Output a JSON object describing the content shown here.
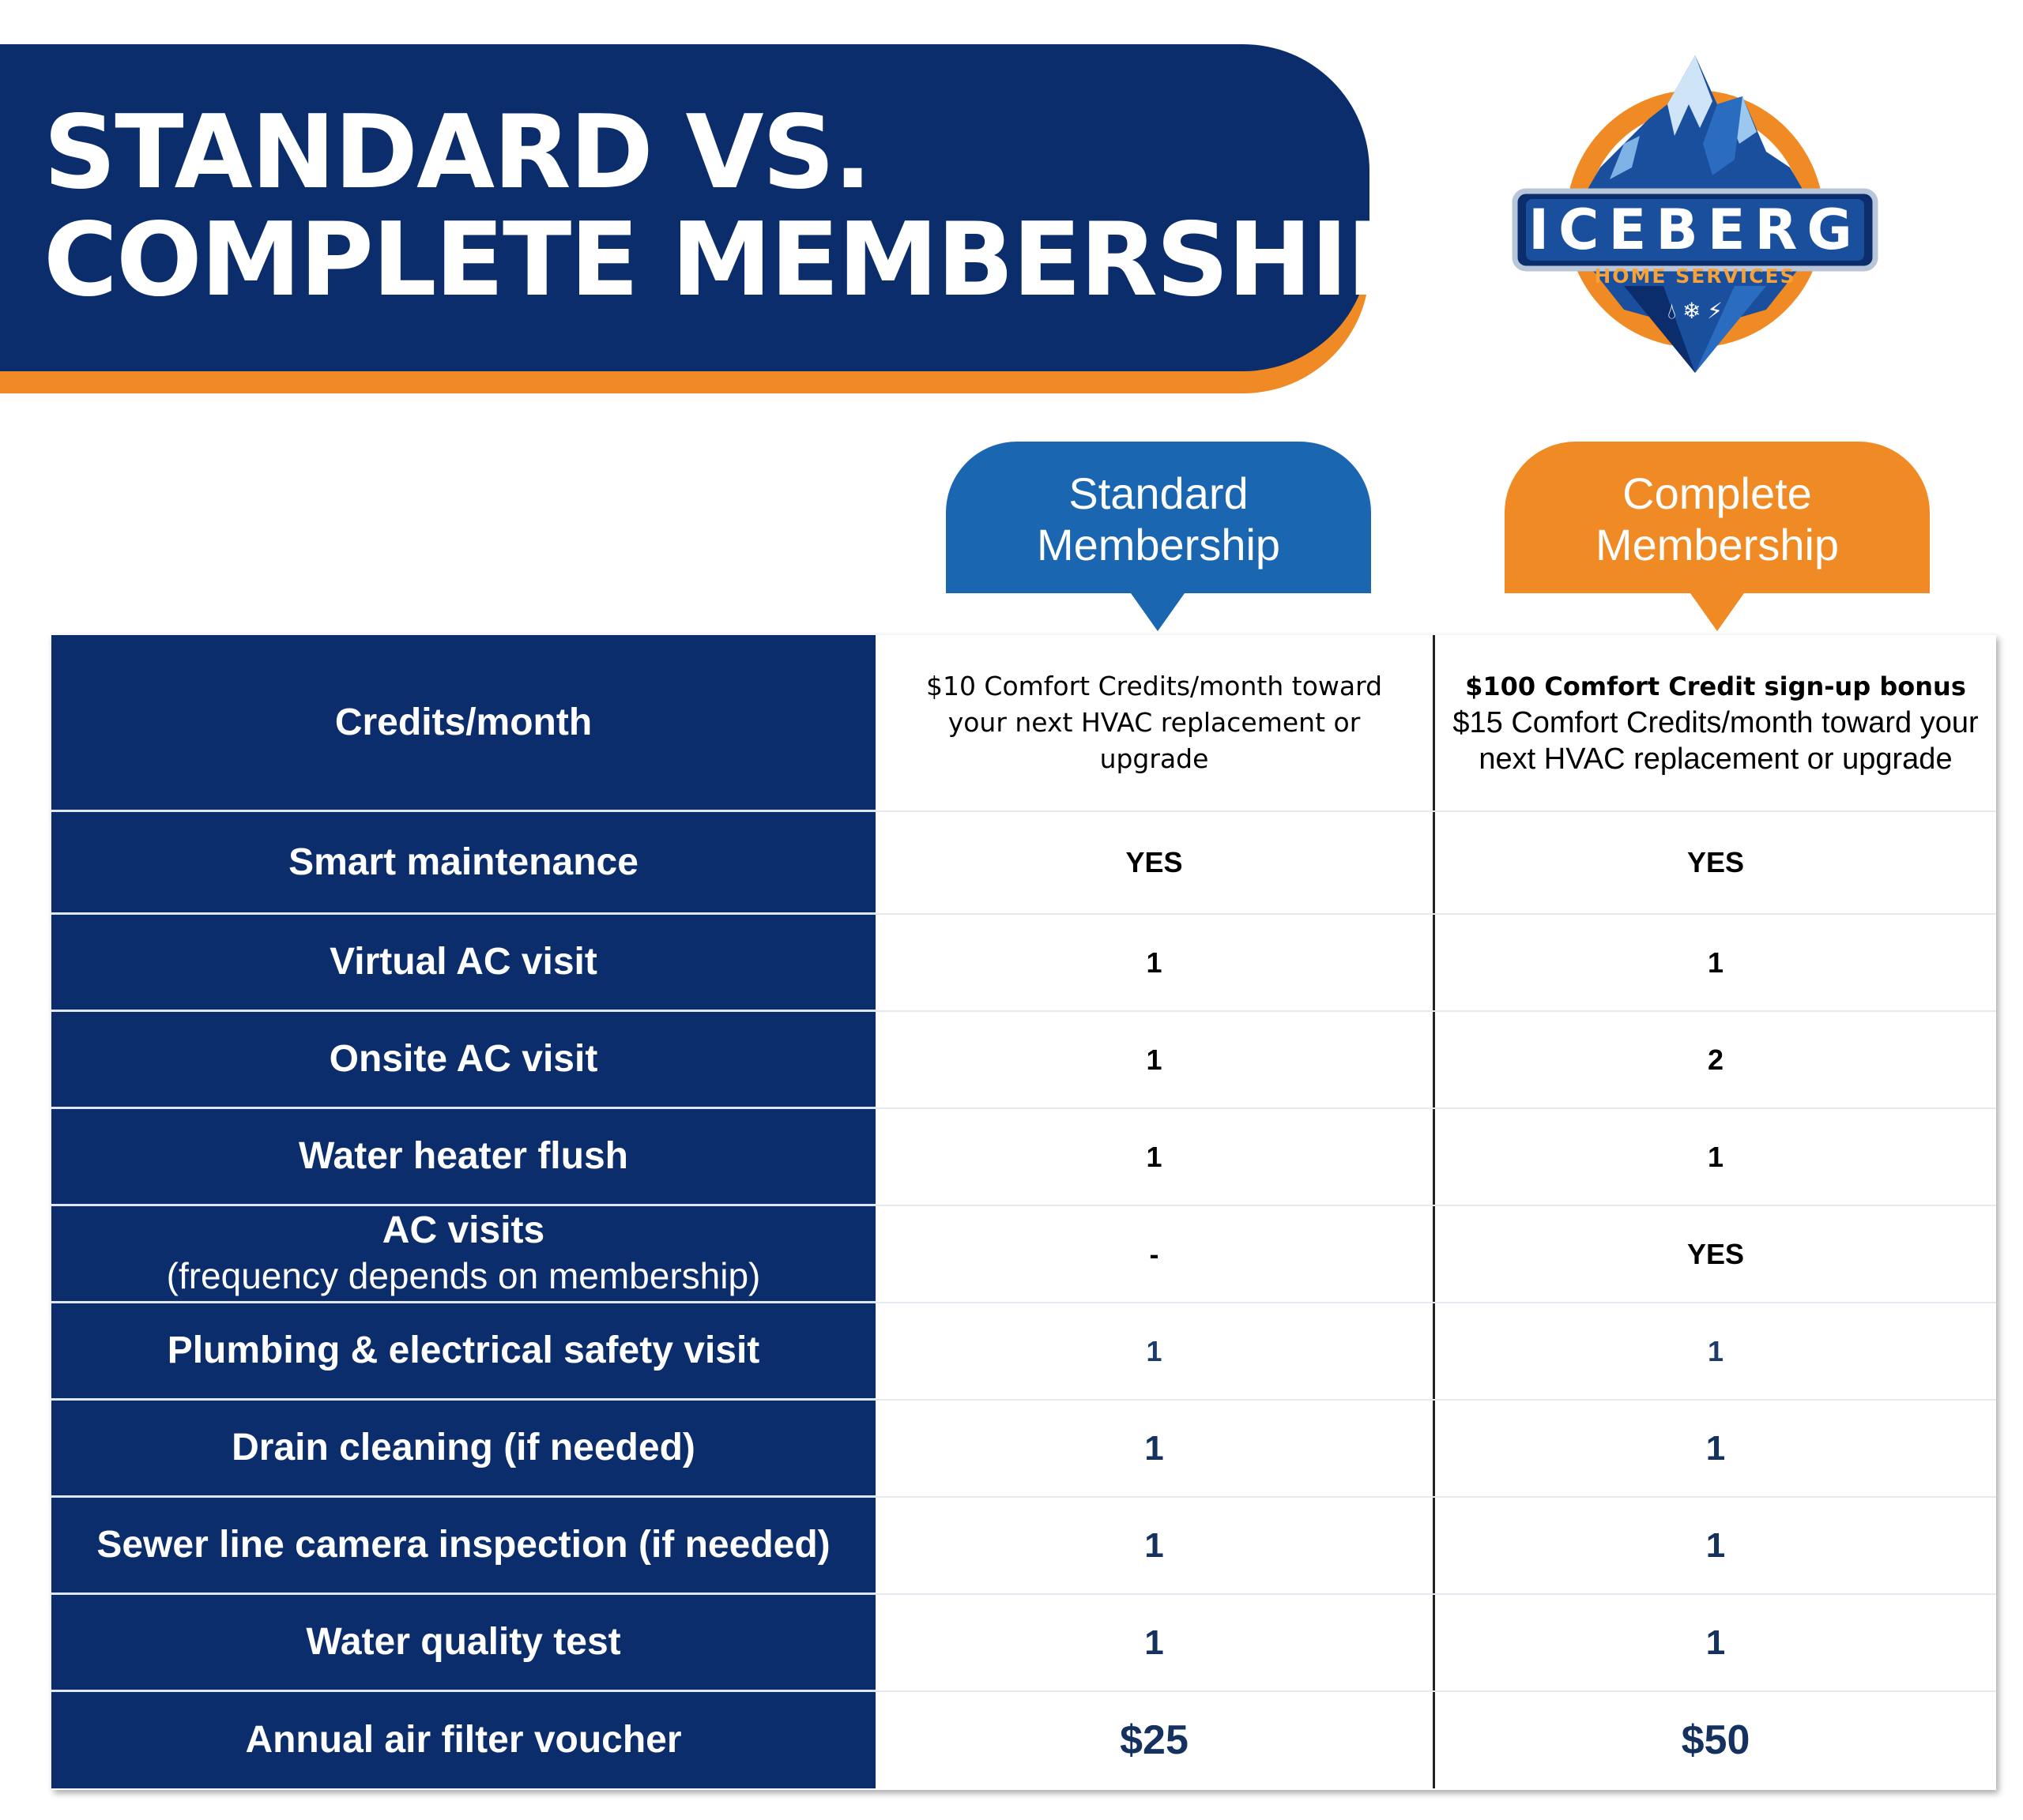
{
  "title": {
    "line1": "STANDARD VS.",
    "line2": "COMPLETE MEMBERSHIP"
  },
  "logo": {
    "name": "ICEBERG",
    "tagline": "HOME SERVICES",
    "icons": [
      "water-drop-icon",
      "snowflake-icon",
      "lightning-icon"
    ],
    "colors": {
      "navy": "#0b2d6b",
      "blue": "#1a66b0",
      "orange": "#f08a24"
    }
  },
  "columns": {
    "standard": {
      "line1": "Standard",
      "line2": "Membership",
      "color": "#1a66b0"
    },
    "complete": {
      "line1": "Complete",
      "line2": "Membership",
      "color": "#f08a24"
    }
  },
  "rows": [
    {
      "label": "Credits/month",
      "standard": "$10 Comfort Credits/month toward your next HVAC replacement or upgrade",
      "complete_bonus": "$100 Comfort Credit sign-up bonus",
      "complete": "$15 Comfort Credits/month toward your next HVAC replacement or upgrade"
    },
    {
      "label": "Smart maintenance",
      "standard": "YES",
      "complete": "YES"
    },
    {
      "label": "Virtual AC visit",
      "standard": "1",
      "complete": "1"
    },
    {
      "label": "Onsite AC visit",
      "standard": "1",
      "complete": "2"
    },
    {
      "label": "Water heater flush",
      "standard": "1",
      "complete": "1"
    },
    {
      "label": "AC visits",
      "sublabel": "(frequency depends on membership)",
      "standard": "-",
      "complete": "YES"
    },
    {
      "label": "Plumbing & electrical safety visit",
      "standard": "1",
      "complete": "1"
    },
    {
      "label": "Drain cleaning (if needed)",
      "standard": "1",
      "complete": "1"
    },
    {
      "label": "Sewer line camera inspection (if needed)",
      "standard": "1",
      "complete": "1"
    },
    {
      "label": "Water quality test",
      "standard": "1",
      "complete": "1"
    },
    {
      "label": "Annual air filter voucher",
      "standard": "$25",
      "complete": "$50"
    }
  ]
}
